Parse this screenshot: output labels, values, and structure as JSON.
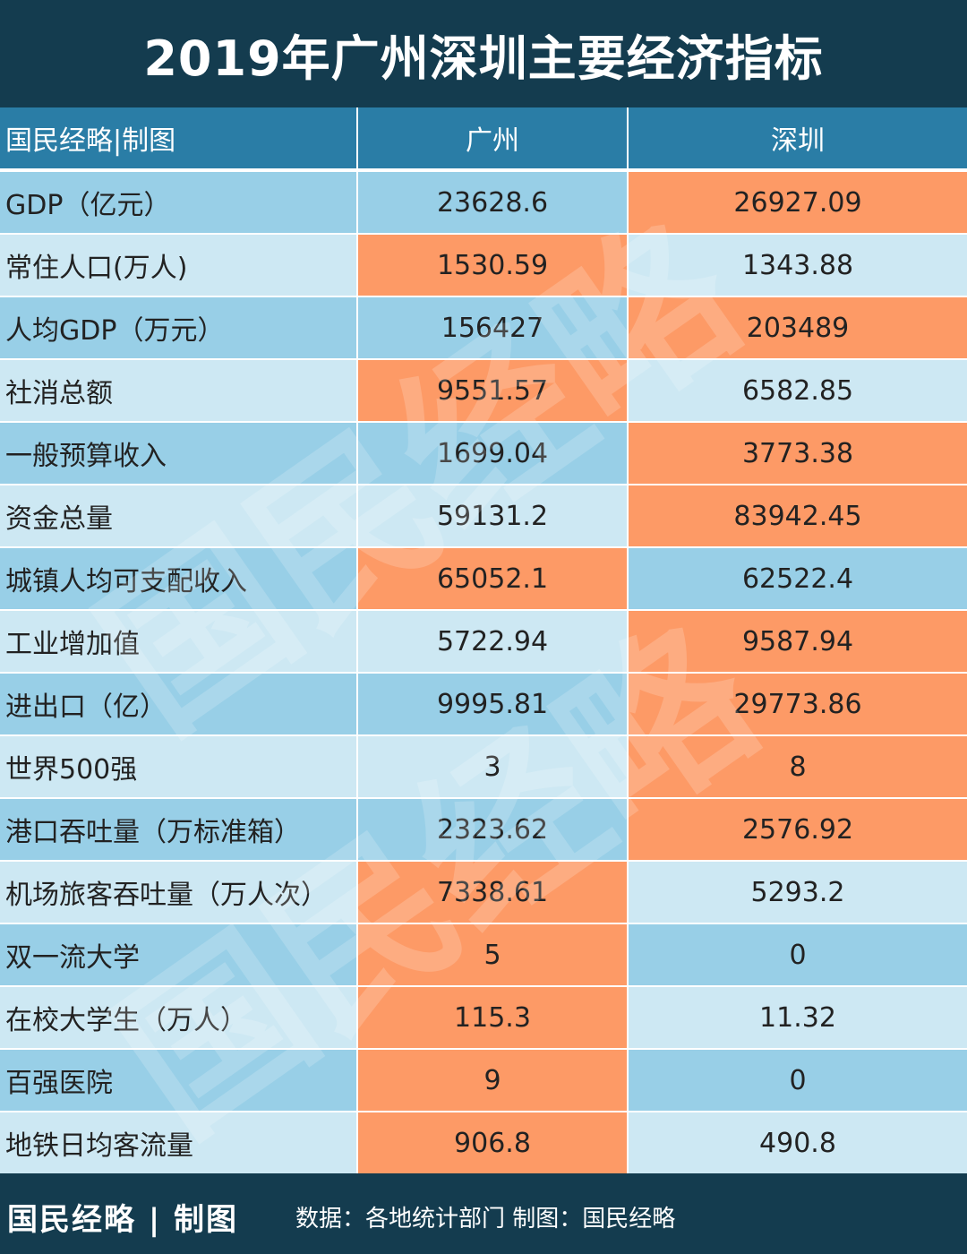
{
  "title": "2019年广州深圳主要经济指标",
  "header": {
    "label": "国民经略|制图",
    "col1": "广州",
    "col2": "深圳"
  },
  "rows": [
    {
      "name": "GDP（亿元）",
      "gz": "23628.6",
      "sz": "26927.09",
      "highlight": "sz"
    },
    {
      "name": "常住人口(万人)",
      "gz": "1530.59",
      "sz": "1343.88",
      "highlight": "gz"
    },
    {
      "name": "人均GDP（万元）",
      "gz": "156427",
      "sz": "203489",
      "highlight": "sz"
    },
    {
      "name": "社消总额",
      "gz": "9551.57",
      "sz": "6582.85",
      "highlight": "gz"
    },
    {
      "name": "一般预算收入",
      "gz": "1699.04",
      "sz": "3773.38",
      "highlight": "sz"
    },
    {
      "name": "资金总量",
      "gz": "59131.2",
      "sz": "83942.45",
      "highlight": "sz"
    },
    {
      "name": "城镇人均可支配收入",
      "gz": "65052.1",
      "sz": "62522.4",
      "highlight": "gz"
    },
    {
      "name": "工业增加值",
      "gz": "5722.94",
      "sz": "9587.94",
      "highlight": "sz"
    },
    {
      "name": "进出口（亿）",
      "gz": "9995.81",
      "sz": "29773.86",
      "highlight": "sz"
    },
    {
      "name": "世界500强",
      "gz": "3",
      "sz": "8",
      "highlight": "sz"
    },
    {
      "name": "港口吞吐量（万标准箱）",
      "gz": "2323.62",
      "sz": "2576.92",
      "highlight": "sz"
    },
    {
      "name": "机场旅客吞吐量（万人次）",
      "gz": "7338.61",
      "sz": "5293.2",
      "highlight": "gz"
    },
    {
      "name": "双一流大学",
      "gz": "5",
      "sz": "0",
      "highlight": "gz"
    },
    {
      "name": "在校大学生（万人）",
      "gz": "115.3",
      "sz": "11.32",
      "highlight": "gz"
    },
    {
      "name": "百强医院",
      "gz": "9",
      "sz": "0",
      "highlight": "gz"
    },
    {
      "name": "地铁日均客流量",
      "gz": "906.8",
      "sz": "490.8",
      "highlight": "gz"
    }
  ],
  "watermark": "国民经略",
  "footer": {
    "brand": "国民经略 | 制图",
    "source": "数据：各地统计部门  制图：国民经略"
  },
  "colors": {
    "title_bg": "#143c4f",
    "header_bg": "#2a7da6",
    "row_dark": "#98cfe7",
    "row_light": "#cde8f3",
    "highlight": "#fd9a66"
  }
}
